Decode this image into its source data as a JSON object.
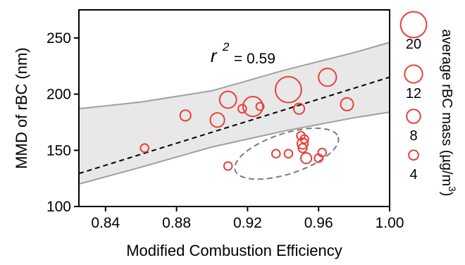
{
  "chart_data": {
    "type": "scatter",
    "xlabel": "Modified Combustion Efficiency",
    "ylabel": "MMD of rBC (nm)",
    "xlim": [
      0.825,
      1.0
    ],
    "ylim": [
      100,
      275
    ],
    "xticks": [
      0.84,
      0.88,
      0.92,
      0.96,
      1.0
    ],
    "xtick_labels": [
      "0.84",
      "0.88",
      "0.92",
      "0.96",
      "1.00"
    ],
    "yticks": [
      100,
      150,
      200,
      250
    ],
    "ytick_labels": [
      "100",
      "150",
      "200",
      "250"
    ],
    "grid": false,
    "point_color": "#e8403a",
    "band_color": "#e8e8e8",
    "band_edge_color": "#a0a0a0",
    "fit_line": {
      "intercept": -274.9,
      "slope": 490,
      "style": "dashed",
      "color": "#000000"
    },
    "confidence_band": {
      "lower": [
        [
          0.825,
          120
        ],
        [
          0.86,
          135
        ],
        [
          0.9,
          153
        ],
        [
          0.94,
          167
        ],
        [
          0.96,
          173
        ],
        [
          0.98,
          179
        ],
        [
          1.0,
          184
        ]
      ],
      "upper": [
        [
          0.825,
          187
        ],
        [
          0.86,
          193
        ],
        [
          0.9,
          203
        ],
        [
          0.94,
          221
        ],
        [
          0.96,
          229
        ],
        [
          0.98,
          237
        ],
        [
          1.0,
          246
        ]
      ]
    },
    "annotation": {
      "r2_symbol": "r",
      "r2_exponent": "2",
      "r2_value": "= 0.59",
      "x": 0.921,
      "y": 233
    },
    "outlier_ellipse": {
      "cx": 0.942,
      "cy": 147,
      "rx_data": 0.0305,
      "ry_data": 18,
      "rotation_deg": -18,
      "style": "dashed",
      "color": "#7a7a7a"
    },
    "series": [
      {
        "name": "average rBC mass",
        "points": [
          {
            "x": 0.862,
            "y": 152,
            "mass": 2.5
          },
          {
            "x": 0.885,
            "y": 181,
            "mass": 5
          },
          {
            "x": 0.903,
            "y": 177,
            "mass": 8.5
          },
          {
            "x": 0.909,
            "y": 195,
            "mass": 11
          },
          {
            "x": 0.909,
            "y": 136,
            "mass": 2.5
          },
          {
            "x": 0.917,
            "y": 187,
            "mass": 2.5
          },
          {
            "x": 0.923,
            "y": 189,
            "mass": 14
          },
          {
            "x": 0.927,
            "y": 189,
            "mass": 2
          },
          {
            "x": 0.936,
            "y": 147,
            "mass": 2.5
          },
          {
            "x": 0.943,
            "y": 204,
            "mass": 20
          },
          {
            "x": 0.943,
            "y": 147,
            "mass": 2.5
          },
          {
            "x": 0.949,
            "y": 187,
            "mass": 5
          },
          {
            "x": 0.95,
            "y": 163,
            "mass": 2.5
          },
          {
            "x": 0.951,
            "y": 156,
            "mass": 5
          },
          {
            "x": 0.951,
            "y": 152,
            "mass": 3
          },
          {
            "x": 0.952,
            "y": 160,
            "mass": 2.5
          },
          {
            "x": 0.953,
            "y": 143,
            "mass": 5
          },
          {
            "x": 0.96,
            "y": 143,
            "mass": 2.5
          },
          {
            "x": 0.962,
            "y": 148,
            "mass": 2.5
          },
          {
            "x": 0.965,
            "y": 215,
            "mass": 12
          },
          {
            "x": 0.976,
            "y": 191,
            "mass": 7
          }
        ]
      }
    ],
    "size_legend": {
      "title": "average rBC mass (µg/m",
      "title_superscript": "3",
      "title_close": ")",
      "entries": [
        {
          "label": "20",
          "mass": 20
        },
        {
          "label": "12",
          "mass": 12
        },
        {
          "label": "8",
          "mass": 8
        },
        {
          "label": "4",
          "mass": 4
        }
      ]
    }
  }
}
